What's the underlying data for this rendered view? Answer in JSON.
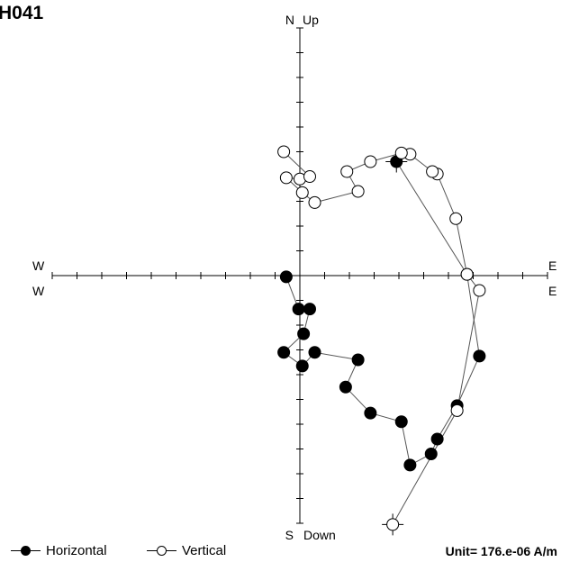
{
  "title": "H041",
  "chart_data": {
    "type": "scatter",
    "projection": "Zijderveld orthogonal vector plot",
    "axis_labels": {
      "north": "N",
      "up": "Up",
      "south": "S",
      "down": "Down",
      "west_top": "W",
      "west_bottom": "W",
      "east_top": "E",
      "east_bottom": "E"
    },
    "xlim": [
      -10,
      10
    ],
    "ylim": [
      -10,
      10
    ],
    "tick_interval": 1,
    "grid": false,
    "legend_position": "bottom",
    "unit": "Unit=  176.e-06 A/m",
    "series": [
      {
        "name": "Horizontal",
        "marker": "filled-circle",
        "points": [
          {
            "x": 3.9,
            "y": 4.6
          },
          {
            "x": 6.75,
            "y": 0.05
          },
          {
            "x": 7.25,
            "y": -3.25
          },
          {
            "x": 6.35,
            "y": -5.25
          },
          {
            "x": 5.55,
            "y": -6.6
          },
          {
            "x": 5.3,
            "y": -7.2
          },
          {
            "x": 4.45,
            "y": -7.65
          },
          {
            "x": 4.1,
            "y": -5.9
          },
          {
            "x": 2.85,
            "y": -5.55
          },
          {
            "x": 1.85,
            "y": -4.5
          },
          {
            "x": 2.35,
            "y": -3.4
          },
          {
            "x": 0.6,
            "y": -3.1
          },
          {
            "x": 0.1,
            "y": -3.65
          },
          {
            "x": -0.65,
            "y": -3.1
          },
          {
            "x": 0.15,
            "y": -2.35
          },
          {
            "x": 0.4,
            "y": -1.35
          },
          {
            "x": -0.05,
            "y": -1.35
          },
          {
            "x": -0.55,
            "y": -0.05
          }
        ]
      },
      {
        "name": "Vertical",
        "marker": "open-circle",
        "points": [
          {
            "x": 3.75,
            "y": -10.05
          },
          {
            "x": 6.35,
            "y": -5.45
          },
          {
            "x": 7.25,
            "y": -0.6
          },
          {
            "x": 6.75,
            "y": 0.05
          },
          {
            "x": 6.3,
            "y": 2.3
          },
          {
            "x": 5.55,
            "y": 4.1
          },
          {
            "x": 5.35,
            "y": 4.2
          },
          {
            "x": 4.45,
            "y": 4.9
          },
          {
            "x": 4.1,
            "y": 4.95
          },
          {
            "x": 2.85,
            "y": 4.6
          },
          {
            "x": 1.9,
            "y": 4.2
          },
          {
            "x": 2.35,
            "y": 3.4
          },
          {
            "x": 0.6,
            "y": 2.95
          },
          {
            "x": 0.1,
            "y": 3.35
          },
          {
            "x": -0.55,
            "y": 3.95
          },
          {
            "x": 0.0,
            "y": 3.9
          },
          {
            "x": 0.4,
            "y": 4.0
          },
          {
            "x": -0.65,
            "y": 5.0
          }
        ]
      }
    ]
  }
}
